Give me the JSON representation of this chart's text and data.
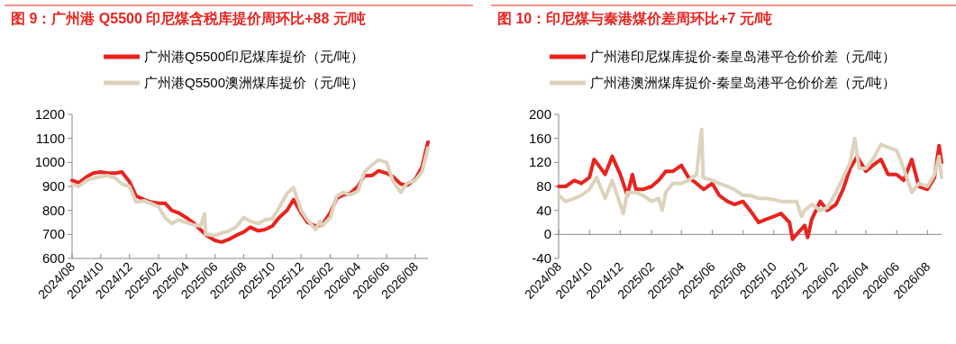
{
  "chart_data": [
    {
      "type": "line",
      "title": "图 9：广州港 Q5500 印尼煤含税库提价周环比+88 元/吨",
      "legend": "top",
      "grid": false,
      "line_style": "solid",
      "marker": "none",
      "xlim": [
        "2024-08-01",
        "2026-08-28"
      ],
      "xticks": [
        {
          "value": "2024-08",
          "label": "2024/08"
        },
        {
          "value": "2024-10",
          "label": "2024/10"
        },
        {
          "value": "2024-12",
          "label": "2024/12"
        },
        {
          "value": "2025-02",
          "label": "2025/02"
        },
        {
          "value": "2025-04",
          "label": "2025/04"
        },
        {
          "value": "2025-06",
          "label": "2025/06"
        },
        {
          "value": "2025-08",
          "label": "2025/08"
        },
        {
          "value": "2025-10",
          "label": "2025/10"
        },
        {
          "value": "2025-12",
          "label": "2025/12"
        },
        {
          "value": "2026-02",
          "label": "2026/02"
        },
        {
          "value": "2026-04",
          "label": "2026/04"
        },
        {
          "value": "2026-06",
          "label": "2026/06"
        },
        {
          "value": "2026-08",
          "label": "2026/08"
        }
      ],
      "ylim": [
        600,
        1200
      ],
      "yticks": [
        600,
        700,
        800,
        900,
        1000,
        1100,
        1200
      ],
      "series": [
        {
          "name": "广州港Q5500印尼煤库提价（元/吨）",
          "color": "#e8231f",
          "x": [
            "2024-08-01",
            "2024-08-15",
            "2024-09-01",
            "2024-09-15",
            "2024-10-01",
            "2024-10-15",
            "2024-11-01",
            "2024-11-15",
            "2024-12-01",
            "2024-12-15",
            "2025-01-01",
            "2025-01-15",
            "2025-02-01",
            "2025-02-15",
            "2025-03-01",
            "2025-03-15",
            "2025-04-01",
            "2025-04-15",
            "2025-05-01",
            "2025-05-15",
            "2025-06-01",
            "2025-06-15",
            "2025-07-01",
            "2025-07-15",
            "2025-08-01",
            "2025-08-15",
            "2025-09-01",
            "2025-09-15",
            "2025-10-01",
            "2025-10-15",
            "2025-11-01",
            "2025-11-15",
            "2025-12-01",
            "2025-12-15",
            "2026-01-01",
            "2026-01-15",
            "2026-02-01",
            "2026-02-15",
            "2026-03-01",
            "2026-03-15",
            "2026-04-01",
            "2026-04-15",
            "2026-05-01",
            "2026-05-15",
            "2026-06-01",
            "2026-06-15",
            "2026-07-01",
            "2026-07-15",
            "2026-08-01",
            "2026-08-15",
            "2026-08-28"
          ],
          "values": [
            925,
            915,
            940,
            955,
            960,
            955,
            955,
            960,
            920,
            860,
            845,
            835,
            830,
            830,
            800,
            790,
            770,
            750,
            720,
            695,
            675,
            668,
            680,
            695,
            710,
            730,
            715,
            720,
            735,
            770,
            800,
            845,
            790,
            750,
            735,
            740,
            790,
            850,
            865,
            870,
            900,
            945,
            945,
            965,
            955,
            940,
            910,
            905,
            930,
            980,
            1085
          ]
        },
        {
          "name": "广州港Q5500澳洲煤库提价（元/吨）",
          "color": "#ddd3bc",
          "x": [
            "2024-08-01",
            "2024-08-15",
            "2024-09-01",
            "2024-09-15",
            "2024-10-01",
            "2024-10-15",
            "2024-11-01",
            "2024-11-15",
            "2024-12-01",
            "2024-12-15",
            "2025-01-01",
            "2025-01-15",
            "2025-02-01",
            "2025-02-15",
            "2025-03-01",
            "2025-03-15",
            "2025-04-01",
            "2025-04-15",
            "2025-05-01",
            "2025-05-10",
            "2025-05-12",
            "2025-05-15",
            "2025-06-01",
            "2025-06-15",
            "2025-07-01",
            "2025-07-15",
            "2025-08-01",
            "2025-08-15",
            "2025-09-01",
            "2025-09-15",
            "2025-10-01",
            "2025-10-15",
            "2025-11-01",
            "2025-11-15",
            "2025-12-01",
            "2025-12-15",
            "2026-01-01",
            "2026-01-10",
            "2026-01-15",
            "2026-02-01",
            "2026-02-15",
            "2026-03-01",
            "2026-03-15",
            "2026-04-01",
            "2026-04-15",
            "2026-05-01",
            "2026-05-15",
            "2026-06-01",
            "2026-06-15",
            "2026-07-01",
            "2026-07-15",
            "2026-08-01",
            "2026-08-15",
            "2026-08-28"
          ],
          "values": [
            910,
            900,
            925,
            935,
            940,
            945,
            935,
            910,
            900,
            835,
            840,
            830,
            815,
            770,
            745,
            760,
            750,
            740,
            735,
            785,
            700,
            700,
            695,
            705,
            715,
            730,
            770,
            755,
            745,
            760,
            765,
            810,
            870,
            895,
            800,
            760,
            720,
            755,
            735,
            770,
            860,
            875,
            865,
            880,
            960,
            990,
            1010,
            1000,
            920,
            875,
            915,
            925,
            960,
            1060
          ]
        }
      ]
    },
    {
      "type": "line",
      "title": "图 10：印尼煤与秦港煤价差周环比+7 元/吨",
      "legend": "top",
      "grid": false,
      "line_style": "solid",
      "marker": "none",
      "xlim": [
        "2024-08-01",
        "2026-08-29"
      ],
      "xticks": [
        {
          "value": "2024-08",
          "label": "2024/08"
        },
        {
          "value": "2024-10",
          "label": "2024/10"
        },
        {
          "value": "2024-12",
          "label": "2024/12"
        },
        {
          "value": "2025-02",
          "label": "2025/02"
        },
        {
          "value": "2025-04",
          "label": "2025/04"
        },
        {
          "value": "2025-06",
          "label": "2025/06"
        },
        {
          "value": "2025-08",
          "label": "2025/08"
        },
        {
          "value": "2025-10",
          "label": "2025/10"
        },
        {
          "value": "2025-12",
          "label": "2025/12"
        },
        {
          "value": "2026-02",
          "label": "2026/02"
        },
        {
          "value": "2026-04",
          "label": "2026/04"
        },
        {
          "value": "2026-06",
          "label": "2026/06"
        },
        {
          "value": "2026-08",
          "label": "2026/08"
        }
      ],
      "ylim": [
        -40,
        200
      ],
      "yticks": [
        -40,
        0,
        40,
        80,
        120,
        160,
        200
      ],
      "series": [
        {
          "name": "广州港印尼煤库提价-秦皇岛港平仓价价差（元/吨）",
          "color": "#e8231f",
          "x": [
            "2024-08-01",
            "2024-08-15",
            "2024-09-01",
            "2024-09-15",
            "2024-10-01",
            "2024-10-10",
            "2024-10-15",
            "2024-11-01",
            "2024-11-15",
            "2024-12-01",
            "2024-12-15",
            "2024-12-25",
            "2025-01-01",
            "2025-01-15",
            "2025-02-01",
            "2025-02-15",
            "2025-03-01",
            "2025-03-15",
            "2025-04-01",
            "2025-04-15",
            "2025-05-01",
            "2025-05-15",
            "2025-06-01",
            "2025-06-15",
            "2025-07-01",
            "2025-07-15",
            "2025-08-01",
            "2025-08-15",
            "2025-09-01",
            "2025-09-15",
            "2025-10-01",
            "2025-10-15",
            "2025-11-01",
            "2025-11-07",
            "2025-11-15",
            "2025-12-01",
            "2025-12-07",
            "2025-12-15",
            "2026-01-01",
            "2026-01-15",
            "2026-02-01",
            "2026-02-15",
            "2026-03-01",
            "2026-03-15",
            "2026-04-01",
            "2026-04-15",
            "2026-05-01",
            "2026-05-15",
            "2026-06-01",
            "2026-06-15",
            "2026-07-01",
            "2026-07-15",
            "2026-08-01",
            "2026-08-15",
            "2026-08-24",
            "2026-08-29"
          ],
          "values": [
            80,
            80,
            90,
            85,
            95,
            125,
            120,
            100,
            130,
            100,
            65,
            100,
            75,
            75,
            80,
            90,
            105,
            105,
            115,
            95,
            85,
            75,
            85,
            65,
            55,
            50,
            55,
            40,
            20,
            25,
            30,
            35,
            20,
            -8,
            0,
            15,
            -5,
            25,
            55,
            40,
            50,
            75,
            110,
            130,
            105,
            115,
            125,
            100,
            100,
            90,
            125,
            80,
            75,
            95,
            148,
            120
          ]
        },
        {
          "name": "广州港澳洲煤库提价-秦皇岛港平仓价价差（元/吨）",
          "color": "#ddd3bc",
          "x": [
            "2024-08-01",
            "2024-08-15",
            "2024-09-01",
            "2024-09-15",
            "2024-10-01",
            "2024-10-15",
            "2024-11-01",
            "2024-11-15",
            "2024-12-01",
            "2024-12-07",
            "2024-12-15",
            "2025-01-01",
            "2025-01-15",
            "2025-02-01",
            "2025-02-15",
            "2025-02-22",
            "2025-03-01",
            "2025-03-15",
            "2025-04-01",
            "2025-04-15",
            "2025-05-01",
            "2025-05-11",
            "2025-05-14",
            "2025-06-01",
            "2025-06-15",
            "2025-07-01",
            "2025-07-15",
            "2025-08-01",
            "2025-08-15",
            "2025-09-01",
            "2025-09-15",
            "2025-10-01",
            "2025-10-15",
            "2025-11-01",
            "2025-11-15",
            "2025-11-25",
            "2025-12-01",
            "2025-12-15",
            "2026-01-01",
            "2026-01-15",
            "2026-02-01",
            "2026-02-15",
            "2026-03-01",
            "2026-03-10",
            "2026-03-19",
            "2026-04-01",
            "2026-04-15",
            "2026-05-01",
            "2026-05-15",
            "2026-06-01",
            "2026-06-15",
            "2026-07-01",
            "2026-07-15",
            "2026-08-01",
            "2026-08-15",
            "2026-08-24",
            "2026-08-29"
          ],
          "values": [
            65,
            55,
            60,
            65,
            75,
            95,
            60,
            90,
            50,
            35,
            70,
            70,
            65,
            55,
            60,
            40,
            70,
            85,
            85,
            90,
            100,
            175,
            95,
            90,
            85,
            80,
            75,
            65,
            65,
            60,
            60,
            58,
            55,
            55,
            55,
            30,
            40,
            50,
            40,
            45,
            70,
            95,
            120,
            160,
            110,
            110,
            125,
            150,
            145,
            140,
            110,
            70,
            85,
            80,
            100,
            130,
            95
          ]
        }
      ]
    }
  ]
}
